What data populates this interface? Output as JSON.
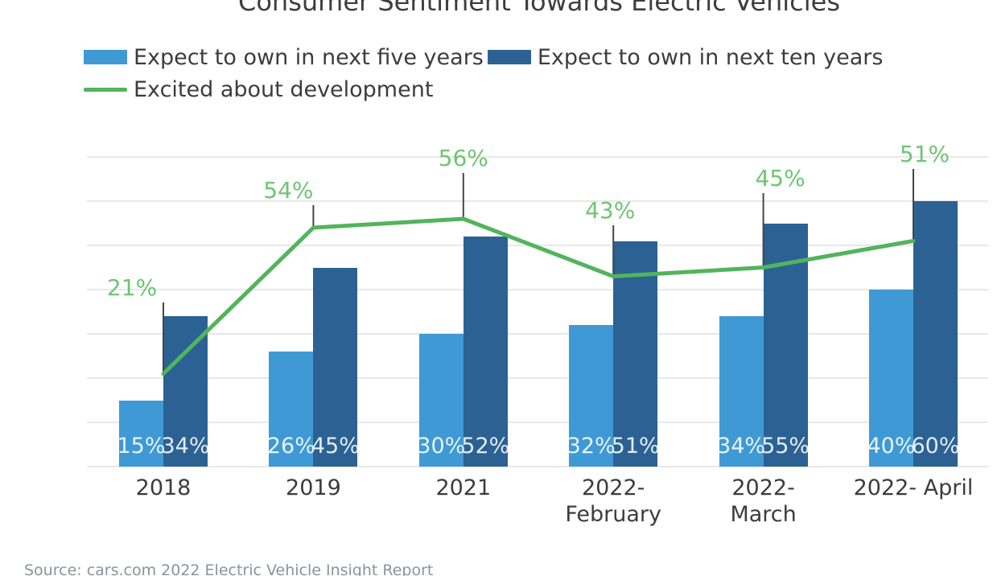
{
  "title": "Consumer Sentiment Towards Electric Vehicles",
  "source": "Source: cars.com 2022 Electric Vehicle Insight Report",
  "colors": {
    "bar_five_years": "#3f99d4",
    "bar_ten_years": "#2b6293",
    "trend_line": "#52b45c",
    "trend_label": "#6ec573",
    "gridline": "#e8e8e8",
    "leader_line": "#454545",
    "text": "#3c3c3c"
  },
  "legend": {
    "items": [
      {
        "label": "Expect to own in next five years",
        "swatch": "bar-swatch",
        "color_key": "bar_five_years"
      },
      {
        "label": "Expect to own in next ten years",
        "swatch": "bar-swatch",
        "color_key": "bar_ten_years"
      },
      {
        "label": "Excited about development",
        "swatch": "line-swatch",
        "color_key": "trend_line"
      }
    ]
  },
  "chart_data": {
    "type": "bar",
    "title": "Consumer Sentiment Towards Electric Vehicles",
    "categories": [
      "2018",
      "2019",
      "2021",
      "2022-\nFebruary",
      "2022-\nMarch",
      "2022- April"
    ],
    "series": [
      {
        "name": "Expect to own in next five years",
        "type": "bar",
        "values": [
          15,
          26,
          30,
          32,
          34,
          40
        ]
      },
      {
        "name": "Expect to own in next ten years",
        "type": "bar",
        "values": [
          34,
          45,
          52,
          51,
          55,
          60
        ]
      },
      {
        "name": "Excited about development",
        "type": "line",
        "values": [
          21,
          54,
          56,
          43,
          45,
          51
        ]
      }
    ],
    "unit": "%",
    "ylim": [
      0,
      70
    ],
    "grid_step": 10,
    "grid": true,
    "value_labels": true,
    "legend_position": "top-left",
    "xlabel": "",
    "ylabel": ""
  }
}
